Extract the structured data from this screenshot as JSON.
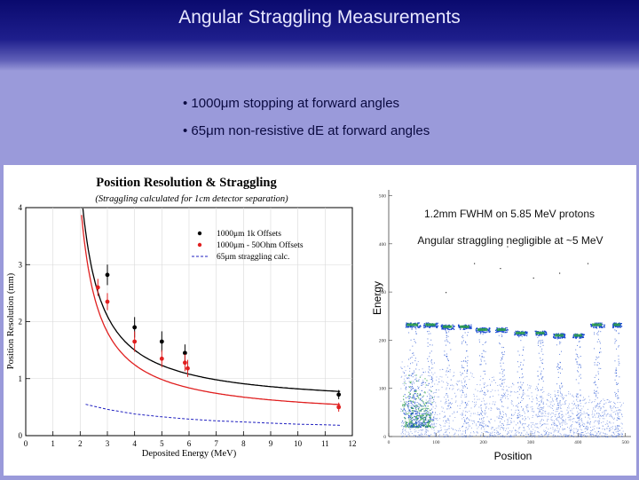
{
  "slide": {
    "title": "Angular Straggling Measurements",
    "bullets": [
      "• 1000μm stopping at forward angles",
      "• 65μm non-resistive dE at forward angles"
    ]
  },
  "colors": {
    "title_bar": "#1e1e8c",
    "slide_bg": "#9a9ada",
    "black_series": "#000000",
    "red_series": "#e02020",
    "blue_series": "#2020c0",
    "scatter_blue": "#1a4ad0",
    "scatter_green": "#2aa040"
  },
  "chart_data": [
    {
      "type": "scatter",
      "title": "Position Resolution & Straggling",
      "subtitle": "(Straggling calculated for 1cm detector separation)",
      "xlabel": "Deposited Energy (MeV)",
      "ylabel": "Position Resolution (mm)",
      "xlim": [
        0,
        12
      ],
      "ylim": [
        0,
        4
      ],
      "xticks": [
        "0",
        "1",
        "2",
        "3",
        "4",
        "5",
        "6",
        "7",
        "8",
        "9",
        "10",
        "11",
        "12"
      ],
      "yticks": [
        "0",
        "1",
        "2",
        "3",
        "4"
      ],
      "legend_position": "top-right",
      "series": [
        {
          "name": "1000μm 1k Offsets",
          "color": "#000000",
          "x": [
            3.0,
            4.0,
            5.0,
            5.85,
            11.5
          ],
          "y": [
            2.82,
            1.9,
            1.65,
            1.45,
            0.72
          ],
          "err": [
            0.18,
            0.18,
            0.18,
            0.15,
            0.08
          ]
        },
        {
          "name": "1000μm - 50Ohm Offsets",
          "color": "#e02020",
          "x": [
            2.65,
            3.0,
            4.0,
            5.0,
            5.85,
            5.95,
            11.5
          ],
          "y": [
            2.6,
            2.35,
            1.65,
            1.35,
            1.28,
            1.18,
            0.5
          ],
          "err": [
            0.15,
            0.15,
            0.18,
            0.15,
            0.15,
            0.15,
            0.08
          ]
        },
        {
          "name": "65μm straggling calc.",
          "color": "#2020c0",
          "style": "dashed",
          "x": [
            2.2,
            3,
            4,
            5,
            6,
            7,
            8,
            9,
            10,
            11,
            11.6
          ],
          "y": [
            0.55,
            0.46,
            0.38,
            0.33,
            0.29,
            0.26,
            0.24,
            0.22,
            0.2,
            0.19,
            0.18
          ]
        }
      ],
      "fits": [
        {
          "color": "#000000",
          "a": 2.6,
          "b": 0.52
        },
        {
          "color": "#e02020",
          "a": 2.5,
          "b": 0.3
        }
      ]
    },
    {
      "type": "scatter",
      "xlabel": "Position",
      "ylabel": "Energy",
      "xlim": [
        0,
        512
      ],
      "ylim": [
        0,
        512
      ],
      "xticks": [
        "0",
        "100",
        "200",
        "300",
        "400",
        "500"
      ],
      "yticks": [
        "0",
        "100",
        "200",
        "300",
        "400",
        "500"
      ],
      "annotations": [
        "1.2mm FWHM on 5.85 MeV protons",
        "Angular straggling negligible at ~5 MeV"
      ],
      "loci": [
        {
          "x": 50,
          "y": 232,
          "width": 34
        },
        {
          "x": 88,
          "y": 232,
          "width": 30
        },
        {
          "x": 124,
          "y": 228,
          "width": 28
        },
        {
          "x": 160,
          "y": 228,
          "width": 28
        },
        {
          "x": 198,
          "y": 222,
          "width": 30
        },
        {
          "x": 238,
          "y": 222,
          "width": 26
        },
        {
          "x": 278,
          "y": 215,
          "width": 28
        },
        {
          "x": 320,
          "y": 215,
          "width": 26
        },
        {
          "x": 360,
          "y": 210,
          "width": 26
        },
        {
          "x": 400,
          "y": 210,
          "width": 24
        },
        {
          "x": 440,
          "y": 232,
          "width": 30
        },
        {
          "x": 482,
          "y": 232,
          "width": 20
        }
      ]
    }
  ]
}
